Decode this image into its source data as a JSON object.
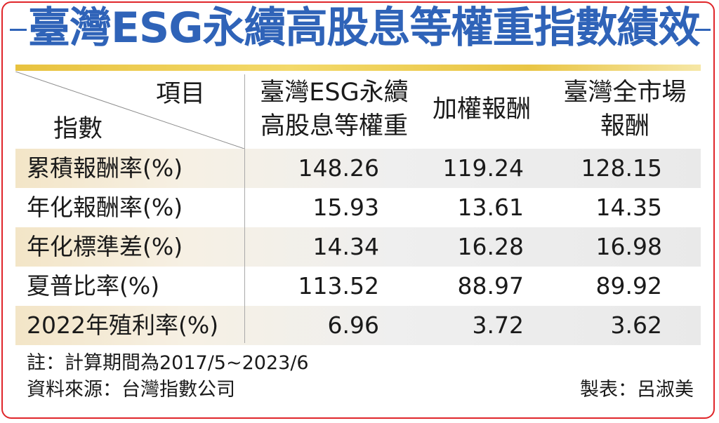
{
  "title": "臺灣ESG永續高股息等權重指數績效",
  "header": {
    "corner_top": "項目",
    "corner_bottom": "指數",
    "col1_line1": "臺灣ESG永續",
    "col1_line2": "高股息等權重",
    "col2": "加權報酬",
    "col3_line1": "臺灣全市場",
    "col3_line2": "報酬"
  },
  "rows": [
    {
      "label": "累積報酬率(%)",
      "values": [
        "148.26",
        "119.24",
        "128.15"
      ]
    },
    {
      "label": "年化報酬率(%)",
      "values": [
        "15.93",
        "13.61",
        "14.35"
      ]
    },
    {
      "label": "年化標準差(%)",
      "values": [
        "14.34",
        "16.28",
        "16.98"
      ]
    },
    {
      "label": "夏普比率(%)",
      "values": [
        "113.52",
        "88.97",
        "89.92"
      ]
    },
    {
      "label": "2022年殖利率(%)",
      "values": [
        "6.96",
        "3.72",
        "3.62"
      ]
    }
  ],
  "footer": {
    "note": "註：計算期間為2017/5~2023/6",
    "source": "資料來源：台灣指數公司",
    "author": "製表：呂淑美"
  },
  "colors": {
    "title": "#2f63b8",
    "border": "#e0262a",
    "gold_bar": "#e8c23f",
    "shaded_row": "#efefef"
  }
}
